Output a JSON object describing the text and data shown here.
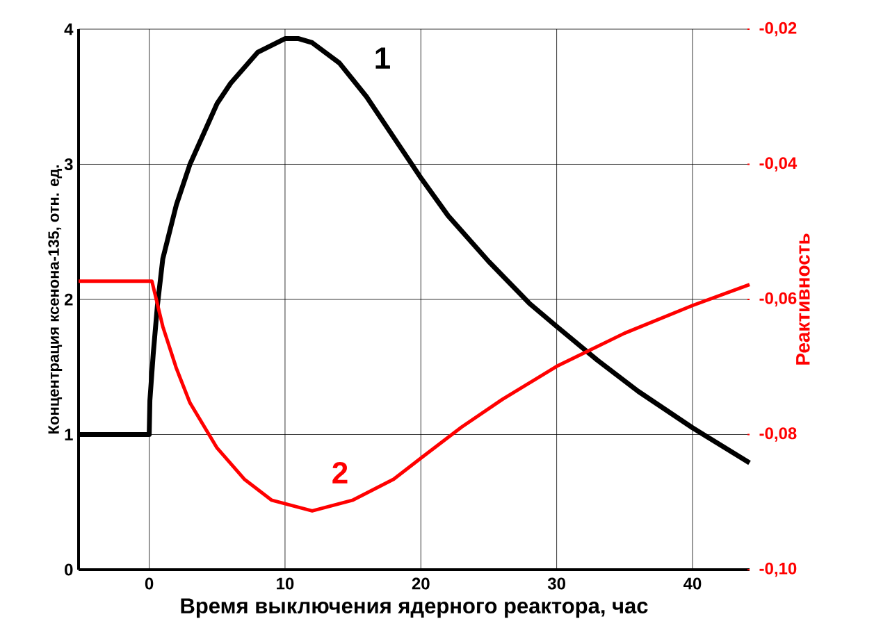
{
  "chart_data": {
    "type": "line",
    "xlabel": "Время выключения ядерного реактора, час",
    "ylabel": "Концентрация ксенона-135, отн. ед.",
    "y2label": "Реактивность",
    "xlim": [
      -5.2,
      44.2
    ],
    "xticks": [
      0,
      10,
      20,
      30,
      40
    ],
    "ylim": [
      0,
      4
    ],
    "yticks": [
      0,
      1,
      2,
      3,
      4
    ],
    "y2lim": [
      -0.1,
      -0.02
    ],
    "y2ticks": [
      {
        "value": -0.1,
        "label": "-0,10"
      },
      {
        "value": -0.08,
        "label": "-0,08"
      },
      {
        "value": -0.06,
        "label": "-0,06"
      },
      {
        "value": -0.04,
        "label": "-0,04"
      },
      {
        "value": -0.02,
        "label": "-0,02"
      }
    ],
    "grid": true,
    "series": [
      {
        "name": "1",
        "color": "#000000",
        "x": [
          -5.2,
          0,
          0.05,
          0.3,
          0.6,
          1,
          2,
          3,
          5,
          6,
          8,
          10,
          11,
          12,
          14,
          16,
          18,
          20,
          22,
          25,
          28,
          30,
          33,
          36,
          40,
          44.2
        ],
        "values": [
          1,
          1,
          1.25,
          1.6,
          1.95,
          2.3,
          2.7,
          3.0,
          3.45,
          3.6,
          3.83,
          3.93,
          3.93,
          3.9,
          3.75,
          3.5,
          3.2,
          2.9,
          2.62,
          2.28,
          1.97,
          1.8,
          1.55,
          1.32,
          1.05,
          0.79
        ]
      },
      {
        "name": "2",
        "color": "#ff0000",
        "axis": "y2",
        "x": [
          -5.2,
          0.2,
          1,
          2,
          3,
          5,
          7,
          9,
          12,
          15,
          18,
          20,
          23,
          26,
          30,
          35,
          40,
          44.2
        ],
        "values": [
          -0.0573,
          -0.0573,
          -0.064,
          -0.0702,
          -0.0753,
          -0.082,
          -0.0866,
          -0.0897,
          -0.0913,
          -0.0897,
          -0.0866,
          -0.0835,
          -0.0789,
          -0.0748,
          -0.0699,
          -0.065,
          -0.0609,
          -0.0578
        ]
      }
    ]
  }
}
